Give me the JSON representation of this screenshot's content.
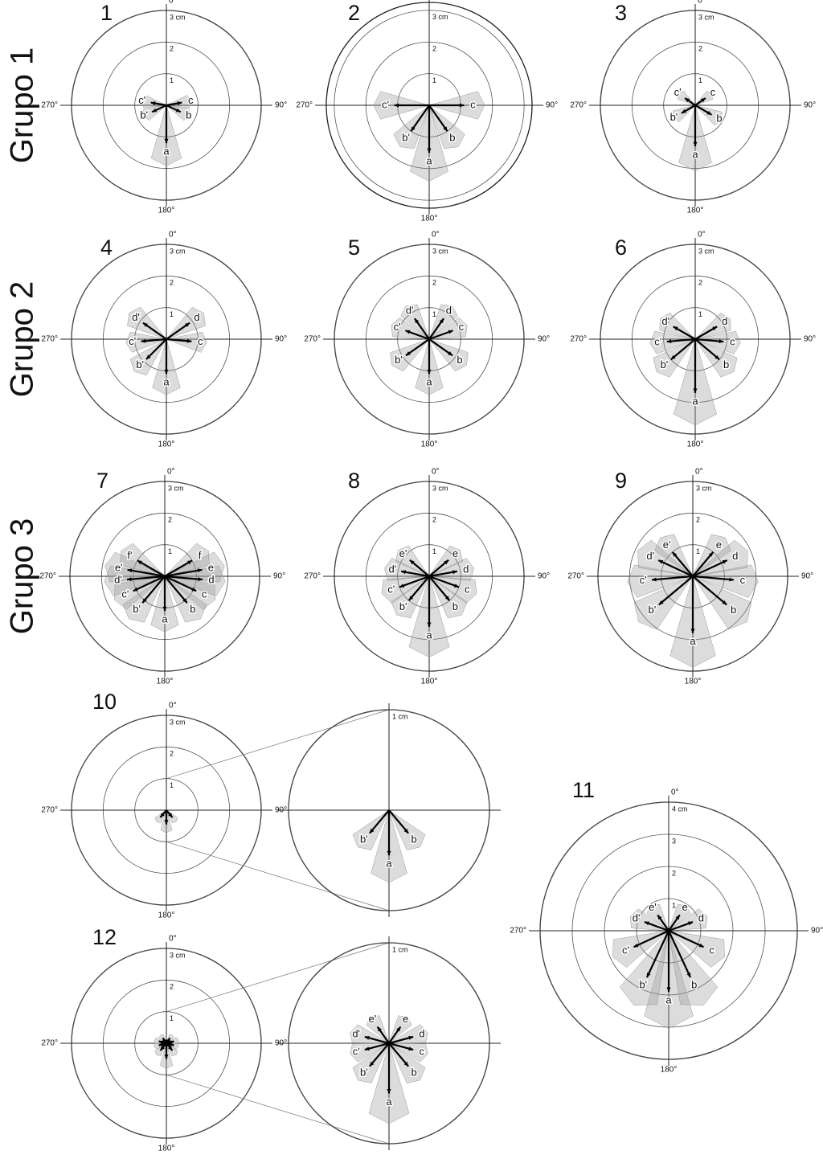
{
  "chart_data": {
    "type": "polar-vectors",
    "groups": [
      "Grupo 1",
      "Grupo 2",
      "Grupo 3"
    ],
    "axis_labels": [
      "0°",
      "90°",
      "180°",
      "270°"
    ],
    "panels": [
      {
        "label": "1",
        "rlim": [
          0,
          3
        ],
        "rticks": [
          1,
          2,
          {
            "value": 3,
            "label": "3 cm"
          }
        ],
        "vectors": [
          {
            "label": "a",
            "angle": 180,
            "length": 1.2
          },
          {
            "label": "b",
            "angle": 115,
            "length": 0.5
          },
          {
            "label": "b'",
            "angle": 245,
            "length": 0.5
          },
          {
            "label": "c",
            "angle": 80,
            "length": 0.5
          },
          {
            "label": "c'",
            "angle": 280,
            "length": 0.5
          }
        ]
      },
      {
        "label": "2",
        "rlim": [
          0,
          3.25
        ],
        "rticks": [
          1,
          2,
          {
            "value": 3,
            "label": "3 cm"
          }
        ],
        "vectors": [
          {
            "label": "a",
            "angle": 180,
            "length": 1.5
          },
          {
            "label": "b",
            "angle": 145,
            "length": 1.0
          },
          {
            "label": "b'",
            "angle": 215,
            "length": 1.0
          },
          {
            "label": "c",
            "angle": 90,
            "length": 1.1
          },
          {
            "label": "c'",
            "angle": 270,
            "length": 1.1
          }
        ]
      },
      {
        "label": "3",
        "rlim": [
          0,
          3
        ],
        "rticks": [
          1,
          2,
          {
            "value": 3,
            "label": "3 cm"
          }
        ],
        "vectors": [
          {
            "label": "a",
            "angle": 180,
            "length": 1.3
          },
          {
            "label": "b",
            "angle": 120,
            "length": 0.6
          },
          {
            "label": "b'",
            "angle": 240,
            "length": 0.5
          },
          {
            "label": "c",
            "angle": 55,
            "length": 0.4
          },
          {
            "label": "c'",
            "angle": 305,
            "length": 0.4
          }
        ]
      },
      {
        "label": "4",
        "rlim": [
          0,
          3
        ],
        "rticks": [
          1,
          2,
          {
            "value": 3,
            "label": "3 cm"
          }
        ],
        "vectors": [
          {
            "label": "a",
            "angle": 180,
            "length": 1.1
          },
          {
            "label": "b'",
            "angle": 225,
            "length": 0.9
          },
          {
            "label": "c",
            "angle": 95,
            "length": 0.8
          },
          {
            "label": "c'",
            "angle": 265,
            "length": 0.8
          },
          {
            "label": "d",
            "angle": 55,
            "length": 0.9
          },
          {
            "label": "d'",
            "angle": 305,
            "length": 0.9
          }
        ]
      },
      {
        "label": "5",
        "rlim": [
          0,
          3
        ],
        "rticks": [
          1,
          2,
          {
            "value": 3,
            "label": "3 cm"
          }
        ],
        "vectors": [
          {
            "label": "a",
            "angle": 180,
            "length": 1.1
          },
          {
            "label": "b",
            "angle": 125,
            "length": 0.9
          },
          {
            "label": "b'",
            "angle": 235,
            "length": 0.9
          },
          {
            "label": "c",
            "angle": 70,
            "length": 0.8
          },
          {
            "label": "c'",
            "angle": 290,
            "length": 0.8
          },
          {
            "label": "d",
            "angle": 35,
            "length": 0.8
          },
          {
            "label": "d'",
            "angle": 325,
            "length": 0.8
          }
        ]
      },
      {
        "label": "6",
        "rlim": [
          0,
          3
        ],
        "rticks": [
          1,
          2,
          {
            "value": 3,
            "label": "3 cm"
          }
        ],
        "vectors": [
          {
            "label": "a",
            "angle": 180,
            "length": 1.7
          },
          {
            "label": "b",
            "angle": 130,
            "length": 1.0
          },
          {
            "label": "b'",
            "angle": 230,
            "length": 1.0
          },
          {
            "label": "c",
            "angle": 95,
            "length": 0.9
          },
          {
            "label": "c'",
            "angle": 265,
            "length": 0.9
          },
          {
            "label": "d",
            "angle": 60,
            "length": 0.8
          },
          {
            "label": "d'",
            "angle": 300,
            "length": 0.8
          }
        ]
      },
      {
        "label": "7",
        "rlim": [
          0,
          3
        ],
        "rticks": [
          1,
          2,
          {
            "value": 3,
            "label": "3 cm"
          }
        ],
        "vectors": [
          {
            "label": "a",
            "angle": 180,
            "length": 1.1
          },
          {
            "label": "b",
            "angle": 140,
            "length": 1.1
          },
          {
            "label": "b'",
            "angle": 220,
            "length": 1.1
          },
          {
            "label": "c",
            "angle": 115,
            "length": 1.1
          },
          {
            "label": "c'",
            "angle": 245,
            "length": 1.1
          },
          {
            "label": "d",
            "angle": 95,
            "length": 1.2
          },
          {
            "label": "d'",
            "angle": 265,
            "length": 1.2
          },
          {
            "label": "e",
            "angle": 80,
            "length": 1.2
          },
          {
            "label": "e'",
            "angle": 280,
            "length": 1.2
          },
          {
            "label": "f",
            "angle": 60,
            "length": 1.0
          },
          {
            "label": "f'",
            "angle": 300,
            "length": 1.0
          }
        ]
      },
      {
        "label": "8",
        "rlim": [
          0,
          3
        ],
        "rticks": [
          1,
          2,
          {
            "value": 3,
            "label": "3 cm"
          }
        ],
        "vectors": [
          {
            "label": "a",
            "angle": 180,
            "length": 1.6
          },
          {
            "label": "b",
            "angle": 140,
            "length": 1.0
          },
          {
            "label": "b'",
            "angle": 220,
            "length": 1.0
          },
          {
            "label": "c",
            "angle": 110,
            "length": 1.0
          },
          {
            "label": "c'",
            "angle": 250,
            "length": 1.0
          },
          {
            "label": "d",
            "angle": 80,
            "length": 0.9
          },
          {
            "label": "d'",
            "angle": 280,
            "length": 0.9
          },
          {
            "label": "e",
            "angle": 50,
            "length": 0.8
          },
          {
            "label": "e'",
            "angle": 310,
            "length": 0.8
          }
        ]
      },
      {
        "label": "9",
        "rlim": [
          0,
          3
        ],
        "rticks": [
          1,
          2,
          {
            "value": 3,
            "label": "3 cm"
          }
        ],
        "vectors": [
          {
            "label": "a",
            "angle": 180,
            "length": 1.8
          },
          {
            "label": "b",
            "angle": 130,
            "length": 1.4
          },
          {
            "label": "b'",
            "angle": 230,
            "length": 1.4
          },
          {
            "label": "c",
            "angle": 95,
            "length": 1.3
          },
          {
            "label": "c'",
            "angle": 265,
            "length": 1.3
          },
          {
            "label": "d",
            "angle": 65,
            "length": 1.2
          },
          {
            "label": "d'",
            "angle": 295,
            "length": 1.2
          },
          {
            "label": "e",
            "angle": 40,
            "length": 1.0
          },
          {
            "label": "e'",
            "angle": 320,
            "length": 1.0
          }
        ]
      },
      {
        "label": "10",
        "rlim": [
          0,
          3
        ],
        "rticks": [
          1,
          2,
          {
            "value": 3,
            "label": "3 cm"
          }
        ],
        "zoom": {
          "rlim": [
            0,
            1
          ],
          "rticks": [
            {
              "value": 1,
              "label": "1 cm"
            }
          ],
          "vectors": [
            {
              "label": "a",
              "angle": 180,
              "length": 0.45
            },
            {
              "label": "b",
              "angle": 140,
              "length": 0.3
            },
            {
              "label": "b'",
              "angle": 220,
              "length": 0.3
            }
          ]
        }
      },
      {
        "label": "11",
        "rlim": [
          0,
          4
        ],
        "rticks": [
          1,
          2,
          3,
          {
            "value": 4,
            "label": "4 cm"
          }
        ],
        "vectors": [
          {
            "label": "a",
            "angle": 180,
            "length": 1.9
          },
          {
            "label": "b",
            "angle": 155,
            "length": 1.6
          },
          {
            "label": "b'",
            "angle": 205,
            "length": 1.6
          },
          {
            "label": "c",
            "angle": 115,
            "length": 1.2
          },
          {
            "label": "c'",
            "angle": 245,
            "length": 1.2
          },
          {
            "label": "d",
            "angle": 70,
            "length": 0.8
          },
          {
            "label": "d'",
            "angle": 290,
            "length": 0.8
          },
          {
            "label": "e",
            "angle": 35,
            "length": 0.6
          },
          {
            "label": "e'",
            "angle": 325,
            "length": 0.6
          }
        ]
      },
      {
        "label": "12",
        "rlim": [
          0,
          3
        ],
        "rticks": [
          1,
          2,
          {
            "value": 3,
            "label": "3 cm"
          }
        ],
        "zoom": {
          "rlim": [
            0,
            1
          ],
          "rticks": [
            {
              "value": 1,
              "label": "1 cm"
            }
          ],
          "vectors": [
            {
              "label": "a",
              "angle": 180,
              "length": 0.5
            },
            {
              "label": "b",
              "angle": 140,
              "length": 0.3
            },
            {
              "label": "b'",
              "angle": 220,
              "length": 0.3
            },
            {
              "label": "c",
              "angle": 105,
              "length": 0.25
            },
            {
              "label": "c'",
              "angle": 255,
              "length": 0.25
            },
            {
              "label": "d",
              "angle": 75,
              "length": 0.25
            },
            {
              "label": "d'",
              "angle": 285,
              "length": 0.25
            },
            {
              "label": "e",
              "angle": 35,
              "length": 0.2
            },
            {
              "label": "e'",
              "angle": 325,
              "length": 0.2
            }
          ]
        }
      }
    ]
  }
}
